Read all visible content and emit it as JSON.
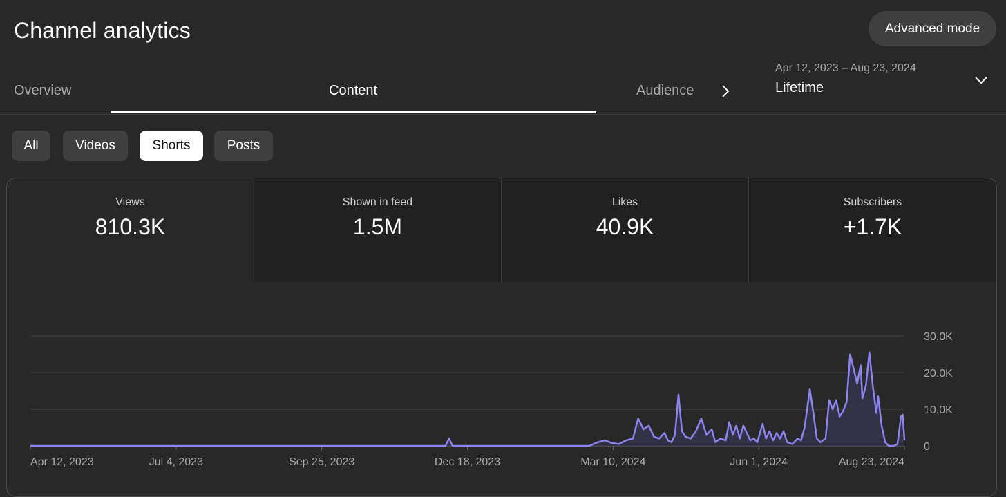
{
  "header": {
    "title": "Channel analytics",
    "advanced_mode_label": "Advanced mode"
  },
  "tabs": [
    {
      "label": "Overview",
      "active": false
    },
    {
      "label": "Content",
      "active": true
    },
    {
      "label": "Audience",
      "active": false
    }
  ],
  "date_picker": {
    "range": "Apr 12, 2023 – Aug 23, 2024",
    "label": "Lifetime"
  },
  "chips": [
    {
      "label": "All",
      "active": false
    },
    {
      "label": "Videos",
      "active": false
    },
    {
      "label": "Shorts",
      "active": true
    },
    {
      "label": "Posts",
      "active": false
    }
  ],
  "metrics": [
    {
      "label": "Views",
      "value": "810.3K",
      "active": true
    },
    {
      "label": "Shown in feed",
      "value": "1.5M",
      "active": false
    },
    {
      "label": "Likes",
      "value": "40.9K",
      "active": false
    },
    {
      "label": "Subscribers",
      "value": "+1.7K",
      "active": false
    }
  ],
  "colors": {
    "background": "#282828",
    "line": "#8c84f0",
    "fill": "#34324a",
    "grid": "#444444",
    "tab_underline": "#ffffff"
  },
  "icons": {
    "tab_next": "chevron-right-icon",
    "date_dropdown": "chevron-down-icon"
  },
  "chart_data": {
    "type": "area",
    "x_start": "2023-04-12",
    "x_end": "2024-08-23",
    "x_tick_labels": [
      "Apr 12, 2023",
      "Jul 4, 2023",
      "Sep 25, 2023",
      "Dec 18, 2023",
      "Mar 10, 2024",
      "Jun 1, 2024",
      "Aug 23, 2024"
    ],
    "y_tick_labels": [
      "30.0K",
      "20.0K",
      "10.0K",
      "0"
    ],
    "ylim": [
      0,
      30000
    ],
    "y_ticks": [
      0,
      10000,
      20000,
      30000
    ],
    "grid": true,
    "series": [
      {
        "points": [
          [
            "2023-04-12",
            0
          ],
          [
            "2023-12-05",
            0
          ],
          [
            "2023-12-07",
            2000
          ],
          [
            "2023-12-09",
            0
          ],
          [
            "2024-02-25",
            0
          ],
          [
            "2024-03-01",
            1000
          ],
          [
            "2024-03-05",
            1500
          ],
          [
            "2024-03-09",
            800
          ],
          [
            "2024-03-13",
            500
          ],
          [
            "2024-03-17",
            1500
          ],
          [
            "2024-03-21",
            2000
          ],
          [
            "2024-03-24",
            7500
          ],
          [
            "2024-03-27",
            4500
          ],
          [
            "2024-03-30",
            5500
          ],
          [
            "2024-04-02",
            2500
          ],
          [
            "2024-04-05",
            2000
          ],
          [
            "2024-04-08",
            3500
          ],
          [
            "2024-04-10",
            1500
          ],
          [
            "2024-04-12",
            1000
          ],
          [
            "2024-04-14",
            3000
          ],
          [
            "2024-04-16",
            14000
          ],
          [
            "2024-04-18",
            4000
          ],
          [
            "2024-04-20",
            2500
          ],
          [
            "2024-04-23",
            2000
          ],
          [
            "2024-04-26",
            4000
          ],
          [
            "2024-04-29",
            7500
          ],
          [
            "2024-05-02",
            3000
          ],
          [
            "2024-05-05",
            4500
          ],
          [
            "2024-05-07",
            1000
          ],
          [
            "2024-05-10",
            2000
          ],
          [
            "2024-05-13",
            1500
          ],
          [
            "2024-05-15",
            6500
          ],
          [
            "2024-05-17",
            3000
          ],
          [
            "2024-05-19",
            5500
          ],
          [
            "2024-05-21",
            2000
          ],
          [
            "2024-05-23",
            5500
          ],
          [
            "2024-05-25",
            3500
          ],
          [
            "2024-05-27",
            1500
          ],
          [
            "2024-05-29",
            2000
          ],
          [
            "2024-05-31",
            1000
          ],
          [
            "2024-06-03",
            6000
          ],
          [
            "2024-06-05",
            2000
          ],
          [
            "2024-06-07",
            4000
          ],
          [
            "2024-06-09",
            1500
          ],
          [
            "2024-06-11",
            3500
          ],
          [
            "2024-06-13",
            2000
          ],
          [
            "2024-06-15",
            4000
          ],
          [
            "2024-06-17",
            1000
          ],
          [
            "2024-06-20",
            500
          ],
          [
            "2024-06-23",
            2000
          ],
          [
            "2024-06-25",
            1500
          ],
          [
            "2024-06-27",
            5000
          ],
          [
            "2024-06-30",
            15500
          ],
          [
            "2024-07-02",
            9000
          ],
          [
            "2024-07-04",
            2000
          ],
          [
            "2024-07-06",
            1000
          ],
          [
            "2024-07-09",
            2000
          ],
          [
            "2024-07-11",
            12500
          ],
          [
            "2024-07-13",
            10000
          ],
          [
            "2024-07-15",
            12500
          ],
          [
            "2024-07-17",
            8000
          ],
          [
            "2024-07-19",
            9500
          ],
          [
            "2024-07-21",
            12000
          ],
          [
            "2024-07-23",
            25000
          ],
          [
            "2024-07-25",
            21000
          ],
          [
            "2024-07-27",
            17000
          ],
          [
            "2024-07-29",
            22000
          ],
          [
            "2024-07-30",
            13000
          ],
          [
            "2024-08-01",
            16500
          ],
          [
            "2024-08-03",
            25500
          ],
          [
            "2024-08-05",
            16000
          ],
          [
            "2024-08-07",
            9000
          ],
          [
            "2024-08-08",
            13500
          ],
          [
            "2024-08-10",
            5500
          ],
          [
            "2024-08-12",
            1000
          ],
          [
            "2024-08-14",
            0
          ],
          [
            "2024-08-16",
            0
          ],
          [
            "2024-08-17",
            0
          ],
          [
            "2024-08-19",
            500
          ],
          [
            "2024-08-20",
            4000
          ],
          [
            "2024-08-21",
            8000
          ],
          [
            "2024-08-22",
            8500
          ],
          [
            "2024-08-23",
            1500
          ]
        ]
      }
    ]
  }
}
